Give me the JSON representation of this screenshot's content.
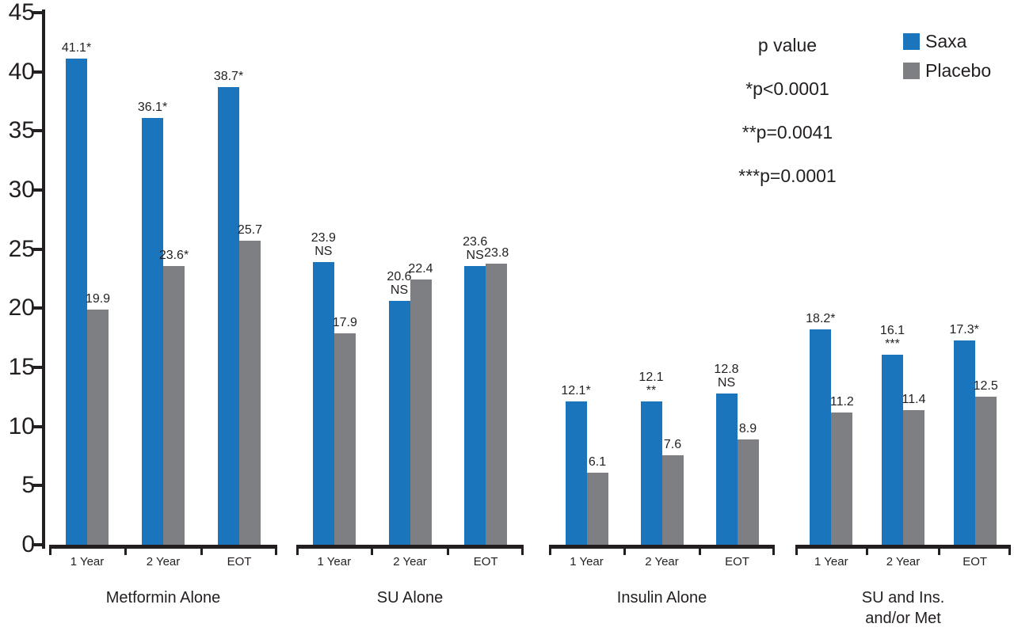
{
  "chart_data": {
    "type": "bar",
    "title": "",
    "xlabel": "",
    "ylabel": "",
    "ylim": [
      0,
      45
    ],
    "yticks": [
      0,
      5,
      10,
      15,
      20,
      25,
      30,
      35,
      40,
      45
    ],
    "grid": false,
    "categories": [
      "1 Year",
      "2 Year",
      "EOT"
    ],
    "series_names": [
      "Saxa",
      "Placebo"
    ],
    "colors": {
      "saxa": "#1b75bc",
      "placebo": "#7d7f82",
      "axis": "#231f20"
    },
    "legend": {
      "position": "top-right",
      "entries": [
        {
          "name": "Saxa",
          "color": "#1b75bc"
        },
        {
          "name": "Placebo",
          "color": "#7d7f82"
        }
      ]
    },
    "annotations": {
      "title": "p value",
      "lines": [
        "*p<0.0001",
        "**p=0.0041",
        "***p=0.0001"
      ]
    },
    "groups": [
      {
        "name": "Metformin Alone",
        "name_lines": [
          "Metformin Alone"
        ],
        "bars": [
          {
            "category": "1 Year",
            "saxa": 41.1,
            "saxa_label": [
              "41.1*"
            ],
            "placebo": 19.9,
            "placebo_label": [
              "19.9"
            ]
          },
          {
            "category": "2 Year",
            "saxa": 36.1,
            "saxa_label": [
              "36.1*"
            ],
            "placebo": 23.6,
            "placebo_label": [
              "23.6*"
            ]
          },
          {
            "category": "EOT",
            "saxa": 38.7,
            "saxa_label": [
              "38.7*"
            ],
            "placebo": 25.7,
            "placebo_label": [
              "25.7"
            ]
          }
        ]
      },
      {
        "name": "SU Alone",
        "name_lines": [
          "SU Alone"
        ],
        "bars": [
          {
            "category": "1 Year",
            "saxa": 23.9,
            "saxa_label": [
              "23.9",
              "NS"
            ],
            "placebo": 17.9,
            "placebo_label": [
              "17.9"
            ]
          },
          {
            "category": "2 Year",
            "saxa": 20.6,
            "saxa_label": [
              "20.6",
              "NS"
            ],
            "placebo": 22.4,
            "placebo_label": [
              "22.4"
            ]
          },
          {
            "category": "EOT",
            "saxa": 23.6,
            "saxa_label": [
              "23.6",
              "NS"
            ],
            "placebo": 23.8,
            "placebo_label": [
              "23.8"
            ]
          }
        ]
      },
      {
        "name": "Insulin Alone",
        "name_lines": [
          "Insulin Alone"
        ],
        "bars": [
          {
            "category": "1 Year",
            "saxa": 12.1,
            "saxa_label": [
              "12.1*"
            ],
            "placebo": 6.1,
            "placebo_label": [
              "6.1"
            ]
          },
          {
            "category": "2 Year",
            "saxa": 12.1,
            "saxa_label": [
              "12.1",
              "**"
            ],
            "placebo": 7.6,
            "placebo_label": [
              "7.6"
            ]
          },
          {
            "category": "EOT",
            "saxa": 12.8,
            "saxa_label": [
              "12.8",
              "NS"
            ],
            "placebo": 8.9,
            "placebo_label": [
              "8.9"
            ]
          }
        ]
      },
      {
        "name": "SU and Ins. and/or Met",
        "name_lines": [
          "SU and Ins.",
          "and/or Met"
        ],
        "bars": [
          {
            "category": "1 Year",
            "saxa": 18.2,
            "saxa_label": [
              "18.2*"
            ],
            "placebo": 11.2,
            "placebo_label": [
              "11.2"
            ]
          },
          {
            "category": "2 Year",
            "saxa": 16.1,
            "saxa_label": [
              "16.1",
              "***"
            ],
            "placebo": 11.4,
            "placebo_label": [
              "11.4"
            ]
          },
          {
            "category": "EOT",
            "saxa": 17.3,
            "saxa_label": [
              "17.3*"
            ],
            "placebo": 12.5,
            "placebo_label": [
              "12.5"
            ]
          }
        ]
      }
    ]
  }
}
